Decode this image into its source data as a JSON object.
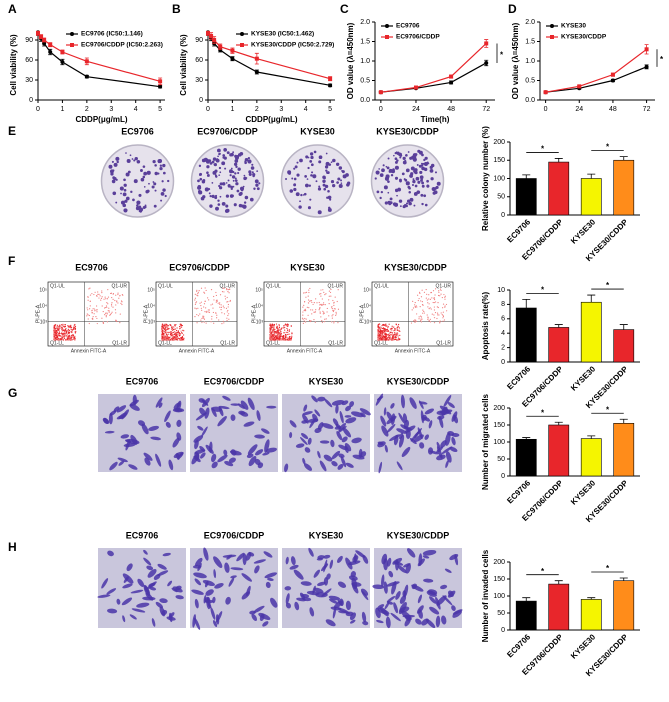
{
  "panel_letters": [
    "A",
    "B",
    "C",
    "D",
    "E",
    "F",
    "G",
    "H"
  ],
  "image_titles": [
    "EC9706",
    "EC9706/CDDP",
    "KYSE30",
    "KYSE30/CDDP"
  ],
  "flow_labels": {
    "quadrants": [
      "Q1-UL",
      "Q1-UR",
      "Q1-LL",
      "Q1-LR"
    ],
    "y_axis": "PI-PE-A",
    "x_axis": "Annexin FITC-A",
    "y_ticks": [
      "10⁵",
      "10⁴",
      "10³"
    ]
  },
  "chart_data": [
    {
      "type": "line",
      "xlabel": "CDDP(μg/mL)",
      "ylabel": "Cell viability (%)",
      "x": [
        0,
        0.125,
        0.25,
        0.5,
        1,
        2,
        5
      ],
      "xlim": [
        0,
        5.2
      ],
      "xticks": [
        0,
        1,
        2,
        3,
        4,
        5
      ],
      "ylim": [
        0,
        105
      ],
      "yticks": [
        0,
        30,
        60,
        90
      ],
      "legend": "upper right",
      "series": [
        {
          "name": "EC9706 (IC50:1.146)",
          "color": "#000000",
          "marker": "circle",
          "values": [
            100,
            92,
            85,
            72,
            57,
            35,
            20
          ],
          "errors": [
            3,
            4,
            4,
            4,
            4,
            2,
            2
          ]
        },
        {
          "name": "EC9706/CDDP (IC50:2.263)",
          "color": "#e8262b",
          "marker": "square",
          "values": [
            100,
            95,
            90,
            83,
            72,
            58,
            28
          ],
          "errors": [
            3,
            3,
            3,
            3,
            3,
            5,
            5
          ]
        }
      ]
    },
    {
      "type": "line",
      "xlabel": "CDDP(μg/mL)",
      "ylabel": "Cell viability (%)",
      "x": [
        0,
        0.125,
        0.25,
        0.5,
        1,
        2,
        5
      ],
      "xlim": [
        0,
        5.2
      ],
      "xticks": [
        0,
        1,
        2,
        3,
        4,
        5
      ],
      "ylim": [
        0,
        105
      ],
      "yticks": [
        0,
        30,
        60,
        90
      ],
      "legend": "upper right",
      "series": [
        {
          "name": "KYSE30 (IC50:1.462)",
          "color": "#000000",
          "marker": "circle",
          "values": [
            100,
            93,
            85,
            75,
            62,
            42,
            22
          ],
          "errors": [
            3,
            4,
            4,
            3,
            3,
            3,
            2
          ]
        },
        {
          "name": "KYSE30/CDDP (IC50:2.729)",
          "color": "#e8262b",
          "marker": "square",
          "values": [
            100,
            96,
            90,
            80,
            74,
            62,
            32
          ],
          "errors": [
            3,
            5,
            5,
            4,
            4,
            8,
            3
          ]
        }
      ]
    },
    {
      "type": "line",
      "xlabel": "Time(h)",
      "ylabel": "OD value (λ=450nm)",
      "x": [
        0,
        24,
        48,
        72
      ],
      "xlim": [
        -4,
        78
      ],
      "xticks": [
        0,
        24,
        48,
        72
      ],
      "ylim": [
        0,
        2
      ],
      "yticks": [
        {
          "value": 0,
          "label": "0.0"
        },
        0.5,
        {
          "value": 1,
          "label": "1.0"
        },
        1.5,
        {
          "value": 2,
          "label": "2.0"
        }
      ],
      "legend": "upper left",
      "annotation": "*",
      "series": [
        {
          "name": "EC9706",
          "color": "#000000",
          "marker": "circle",
          "values": [
            0.2,
            0.3,
            0.45,
            0.95
          ],
          "errors": [
            0.02,
            0.02,
            0.04,
            0.07
          ]
        },
        {
          "name": "EC9706/CDDP",
          "color": "#e8262b",
          "marker": "square",
          "values": [
            0.2,
            0.32,
            0.6,
            1.45
          ],
          "errors": [
            0.02,
            0.02,
            0.04,
            0.1
          ]
        }
      ]
    },
    {
      "type": "line",
      "xlabel": "",
      "ylabel": "OD value (λ=450nm)",
      "x": [
        0,
        24,
        48,
        72
      ],
      "xlim": [
        -4,
        78
      ],
      "xticks": [
        0,
        24,
        48,
        72
      ],
      "ylim": [
        0,
        2
      ],
      "yticks": [
        {
          "value": 0,
          "label": "0.0"
        },
        0.5,
        {
          "value": 1,
          "label": "1.0"
        },
        1.5,
        {
          "value": 2,
          "label": "2.0"
        }
      ],
      "legend": "upper left",
      "annotation": "*",
      "series": [
        {
          "name": "KYSE30",
          "color": "#000000",
          "marker": "circle",
          "values": [
            0.2,
            0.3,
            0.5,
            0.85
          ],
          "errors": [
            0.02,
            0.02,
            0.03,
            0.05
          ]
        },
        {
          "name": "KYSE30/CDDP",
          "color": "#e8262b",
          "marker": "square",
          "values": [
            0.2,
            0.35,
            0.65,
            1.3
          ],
          "errors": [
            0.02,
            0.02,
            0.04,
            0.12
          ]
        }
      ]
    },
    {
      "type": "bar",
      "ylabel": "Relative colony number (%)",
      "categories": [
        "EC9706",
        "EC9706/CDDP",
        "KYSE30",
        "KYSE30/CDDP"
      ],
      "values": [
        100,
        145,
        100,
        150
      ],
      "errors": [
        10,
        10,
        12,
        10
      ],
      "colors": [
        "#000000",
        "#e8262b",
        "#f5f500",
        "#ff8c1a"
      ],
      "ylim": [
        0,
        200
      ],
      "yticks": [
        0,
        50,
        100,
        150,
        200
      ],
      "annotations": [
        "*",
        "*"
      ]
    },
    {
      "type": "bar",
      "ylabel": "Apoptosis rate(%)",
      "categories": [
        "EC9706",
        "EC9706/CDDP",
        "KYSE30",
        "KYSE30/CDDP"
      ],
      "values": [
        7.5,
        4.8,
        8.3,
        4.5
      ],
      "errors": [
        1.2,
        0.4,
        1,
        0.7
      ],
      "colors": [
        "#000000",
        "#e8262b",
        "#f5f500",
        "#e8262b"
      ],
      "ylim": [
        0,
        10
      ],
      "yticks": [
        0,
        2,
        4,
        6,
        8,
        10
      ],
      "annotations": [
        "*",
        "*"
      ]
    },
    {
      "type": "bar",
      "ylabel": "Number of migrated cells",
      "categories": [
        "EC9706",
        "EC9706/CDDP",
        "KYSE30",
        "KYSE30/CDDP"
      ],
      "values": [
        108,
        150,
        110,
        155
      ],
      "errors": [
        5,
        8,
        8,
        12
      ],
      "colors": [
        "#000000",
        "#e8262b",
        "#f5f500",
        "#ff8c1a"
      ],
      "ylim": [
        0,
        200
      ],
      "yticks": [
        0,
        50,
        100,
        150,
        200
      ],
      "annotations": [
        "*",
        "*"
      ]
    },
    {
      "type": "bar",
      "ylabel": "Number of invaded cells",
      "categories": [
        "EC9706",
        "EC9706/CDDP",
        "KYSE30",
        "KYSE30/CDDP"
      ],
      "values": [
        85,
        135,
        90,
        145
      ],
      "errors": [
        10,
        10,
        5,
        8
      ],
      "colors": [
        "#000000",
        "#e8262b",
        "#f5f500",
        "#ff8c1a"
      ],
      "ylim": [
        0,
        200
      ],
      "yticks": [
        0,
        50,
        100,
        150,
        200
      ],
      "annotations": [
        "*",
        "*"
      ]
    }
  ]
}
